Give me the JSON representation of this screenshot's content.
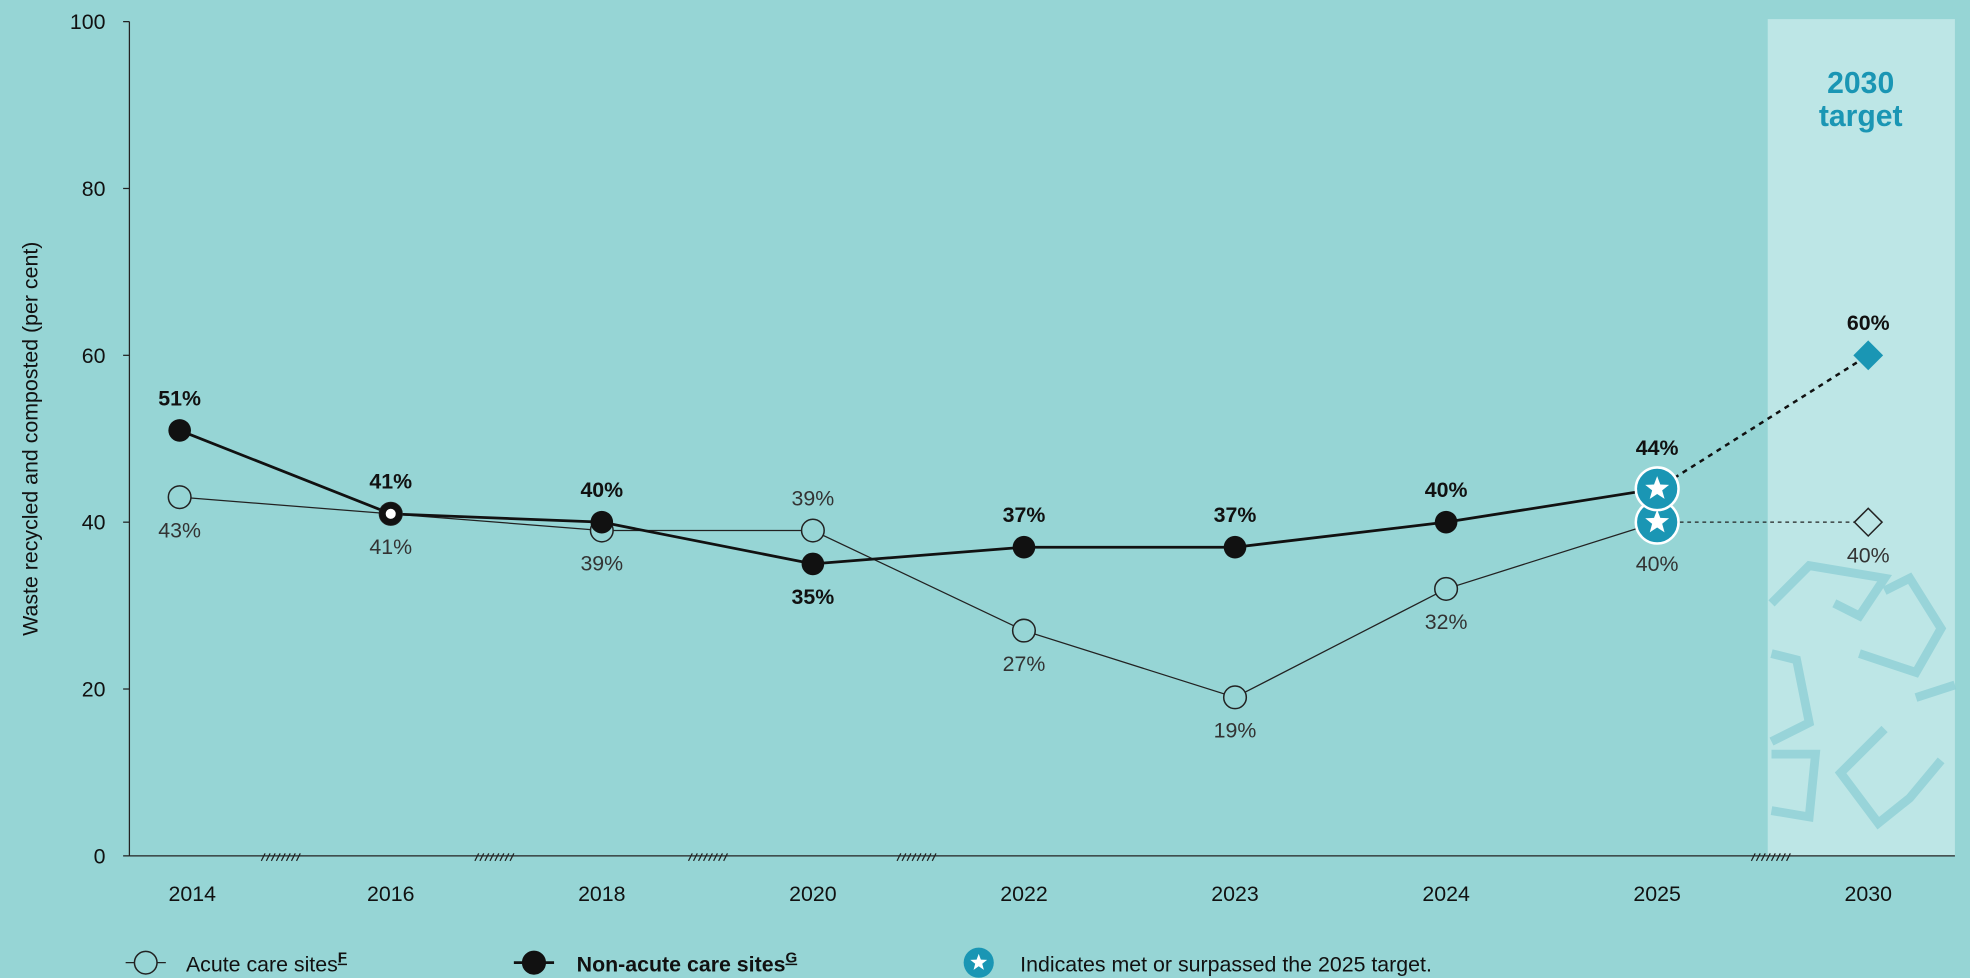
{
  "chart_data": {
    "type": "line",
    "y_label": "Waste recycled and composted (per cent)",
    "categories": [
      "2014",
      "2016",
      "2018",
      "2020",
      "2022",
      "2023",
      "2024",
      "2025",
      "2030"
    ],
    "ylim": [
      0,
      100
    ],
    "yticks": [
      0,
      20,
      40,
      60,
      80,
      100
    ],
    "target_label": [
      "2030",
      "target"
    ],
    "target_color": "#1a96b4",
    "star_category": "2025",
    "star_note": "Indicates met or surpassed the 2025 target.",
    "series": [
      {
        "name": "Acute care sites",
        "footnote": "F",
        "color": "#222222",
        "marker": "open",
        "values": [
          43,
          41,
          39,
          39,
          27,
          19,
          32,
          40,
          40
        ],
        "value_labels": [
          "43%",
          "41%",
          "39%",
          "39%",
          "27%",
          "19%",
          "32%",
          "40%",
          "40%"
        ]
      },
      {
        "name": "Non-acute care sites",
        "footnote": "G",
        "color": "#111111",
        "marker": "filled",
        "values": [
          51,
          41,
          40,
          35,
          37,
          37,
          40,
          44,
          60
        ],
        "value_labels": [
          "51%",
          "41%",
          "40%",
          "35%",
          "37%",
          "37%",
          "40%",
          "44%",
          "60%"
        ]
      }
    ]
  }
}
